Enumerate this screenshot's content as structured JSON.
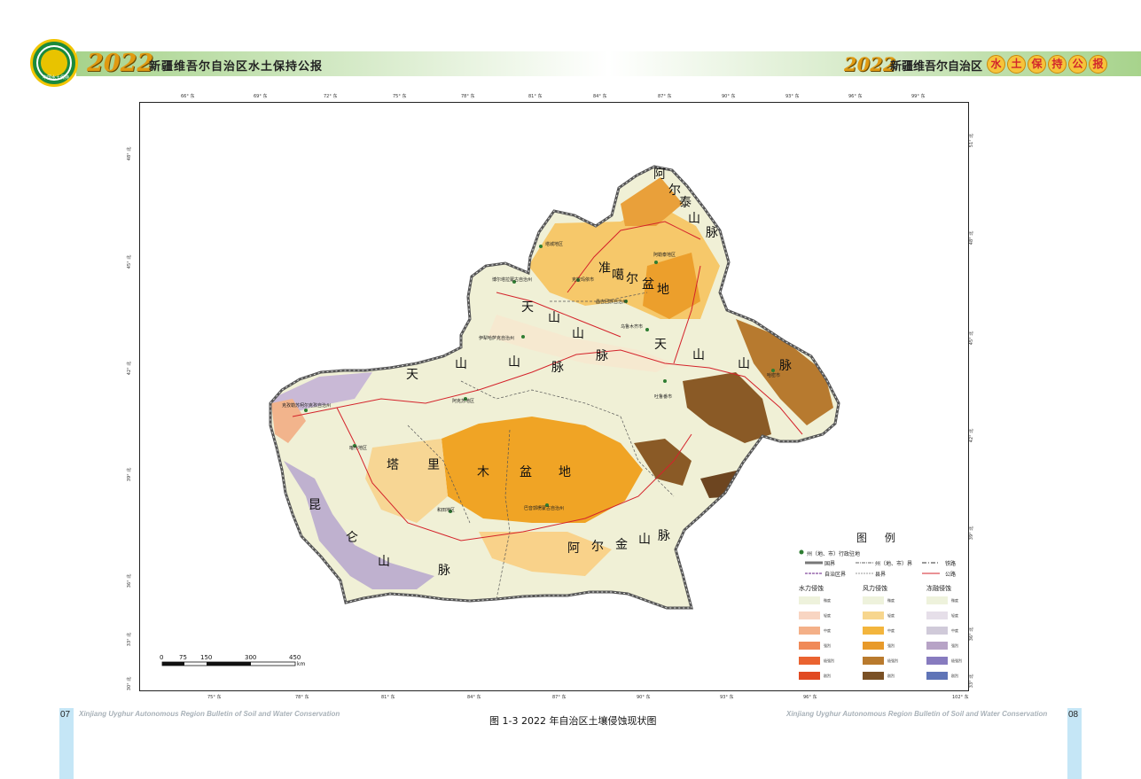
{
  "header": {
    "logo_text": "中国水土保持",
    "year": "2022",
    "left_title": "新疆维吾尔自治区水土保持公报",
    "right_prefix": "新疆维吾尔自治区",
    "right_chars": [
      "水",
      "土",
      "保",
      "持",
      "公",
      "报"
    ]
  },
  "map": {
    "top_ticks": [
      "66° 东",
      "69° 东",
      "72° 东",
      "75° 东",
      "78° 东",
      "81° 东",
      "84° 东",
      "87° 东",
      "90° 东",
      "93° 东",
      "96° 东",
      "99° 东"
    ],
    "bottom_ticks": [
      "75° 东",
      "78° 东",
      "81° 东",
      "84° 东",
      "87° 东",
      "90° 东",
      "93° 东",
      "96° 东",
      "102° 东"
    ],
    "left_ticks": [
      "48° 北",
      "45° 北",
      "42° 北",
      "39° 北",
      "36° 北",
      "33° 北",
      "30° 北"
    ],
    "right_ticks": [
      "51° 北",
      "48° 北",
      "45° 北",
      "42° 北",
      "39° 北",
      "36° 北",
      "33° 北"
    ],
    "place_chars": {
      "altai": [
        "阿",
        "尔",
        "泰",
        "山",
        "脉"
      ],
      "junggar": [
        "准",
        "噶",
        "尔",
        "盆",
        "地"
      ],
      "tianshan": [
        "天",
        "山",
        "山",
        "脉",
        "天",
        "山",
        "山",
        "脉"
      ],
      "tarim": [
        "塔",
        "里",
        "木",
        "盆",
        "地"
      ],
      "kunlun": [
        "昆",
        "仑",
        "山",
        "脉"
      ],
      "altun": [
        "阿",
        "尔",
        "金",
        "山",
        "脉"
      ]
    },
    "regions": [
      "塔城地区",
      "阿勒泰地区",
      "博尔塔拉蒙古自治州",
      "克拉玛依市",
      "昌吉回族自治州",
      "伊犁哈萨克自治州",
      "乌鲁木齐市",
      "吐鲁番市",
      "哈密市",
      "阿克苏地区",
      "克孜勒苏柯尔克孜自治州",
      "喀什地区",
      "和田地区",
      "巴音郭楞蒙古自治州"
    ]
  },
  "legend": {
    "title": "图 例",
    "seat": "州（地、市）行政驻地",
    "lines": {
      "national": "国界",
      "autonomous": "自治区界",
      "prefecture": "州（地、市）界",
      "county": "县界",
      "railway": "铁路",
      "highway": "公路"
    },
    "columns": [
      {
        "name": "水力侵蚀",
        "colors": [
          "#eef2dc",
          "#f8d5c2",
          "#f4b088",
          "#f08a58",
          "#ea6330",
          "#e14a22"
        ]
      },
      {
        "name": "风力侵蚀",
        "colors": [
          "#eef2dc",
          "#f7d68e",
          "#f3b53d",
          "#e89a2a",
          "#b97a2d",
          "#7a5025"
        ]
      },
      {
        "name": "冻融侵蚀",
        "colors": [
          "#eef2dc",
          "#e6dfe9",
          "#d0cad9",
          "#b7a3c6",
          "#877bbf",
          "#5f74b7"
        ]
      }
    ],
    "levels": [
      "微度",
      "轻度",
      "中度",
      "强烈",
      "极强烈",
      "剧烈"
    ]
  },
  "scalebar": {
    "values": [
      "0",
      "75",
      "150",
      "300",
      "450"
    ],
    "unit": "km"
  },
  "caption": "图 1-3  2022 年自治区土壤侵蚀现状图",
  "footer": {
    "left_page": "07",
    "right_page": "08",
    "bulletin": "Xinjiang Uyghur Autonomous Region Bulletin of Soil and Water Conservation"
  }
}
